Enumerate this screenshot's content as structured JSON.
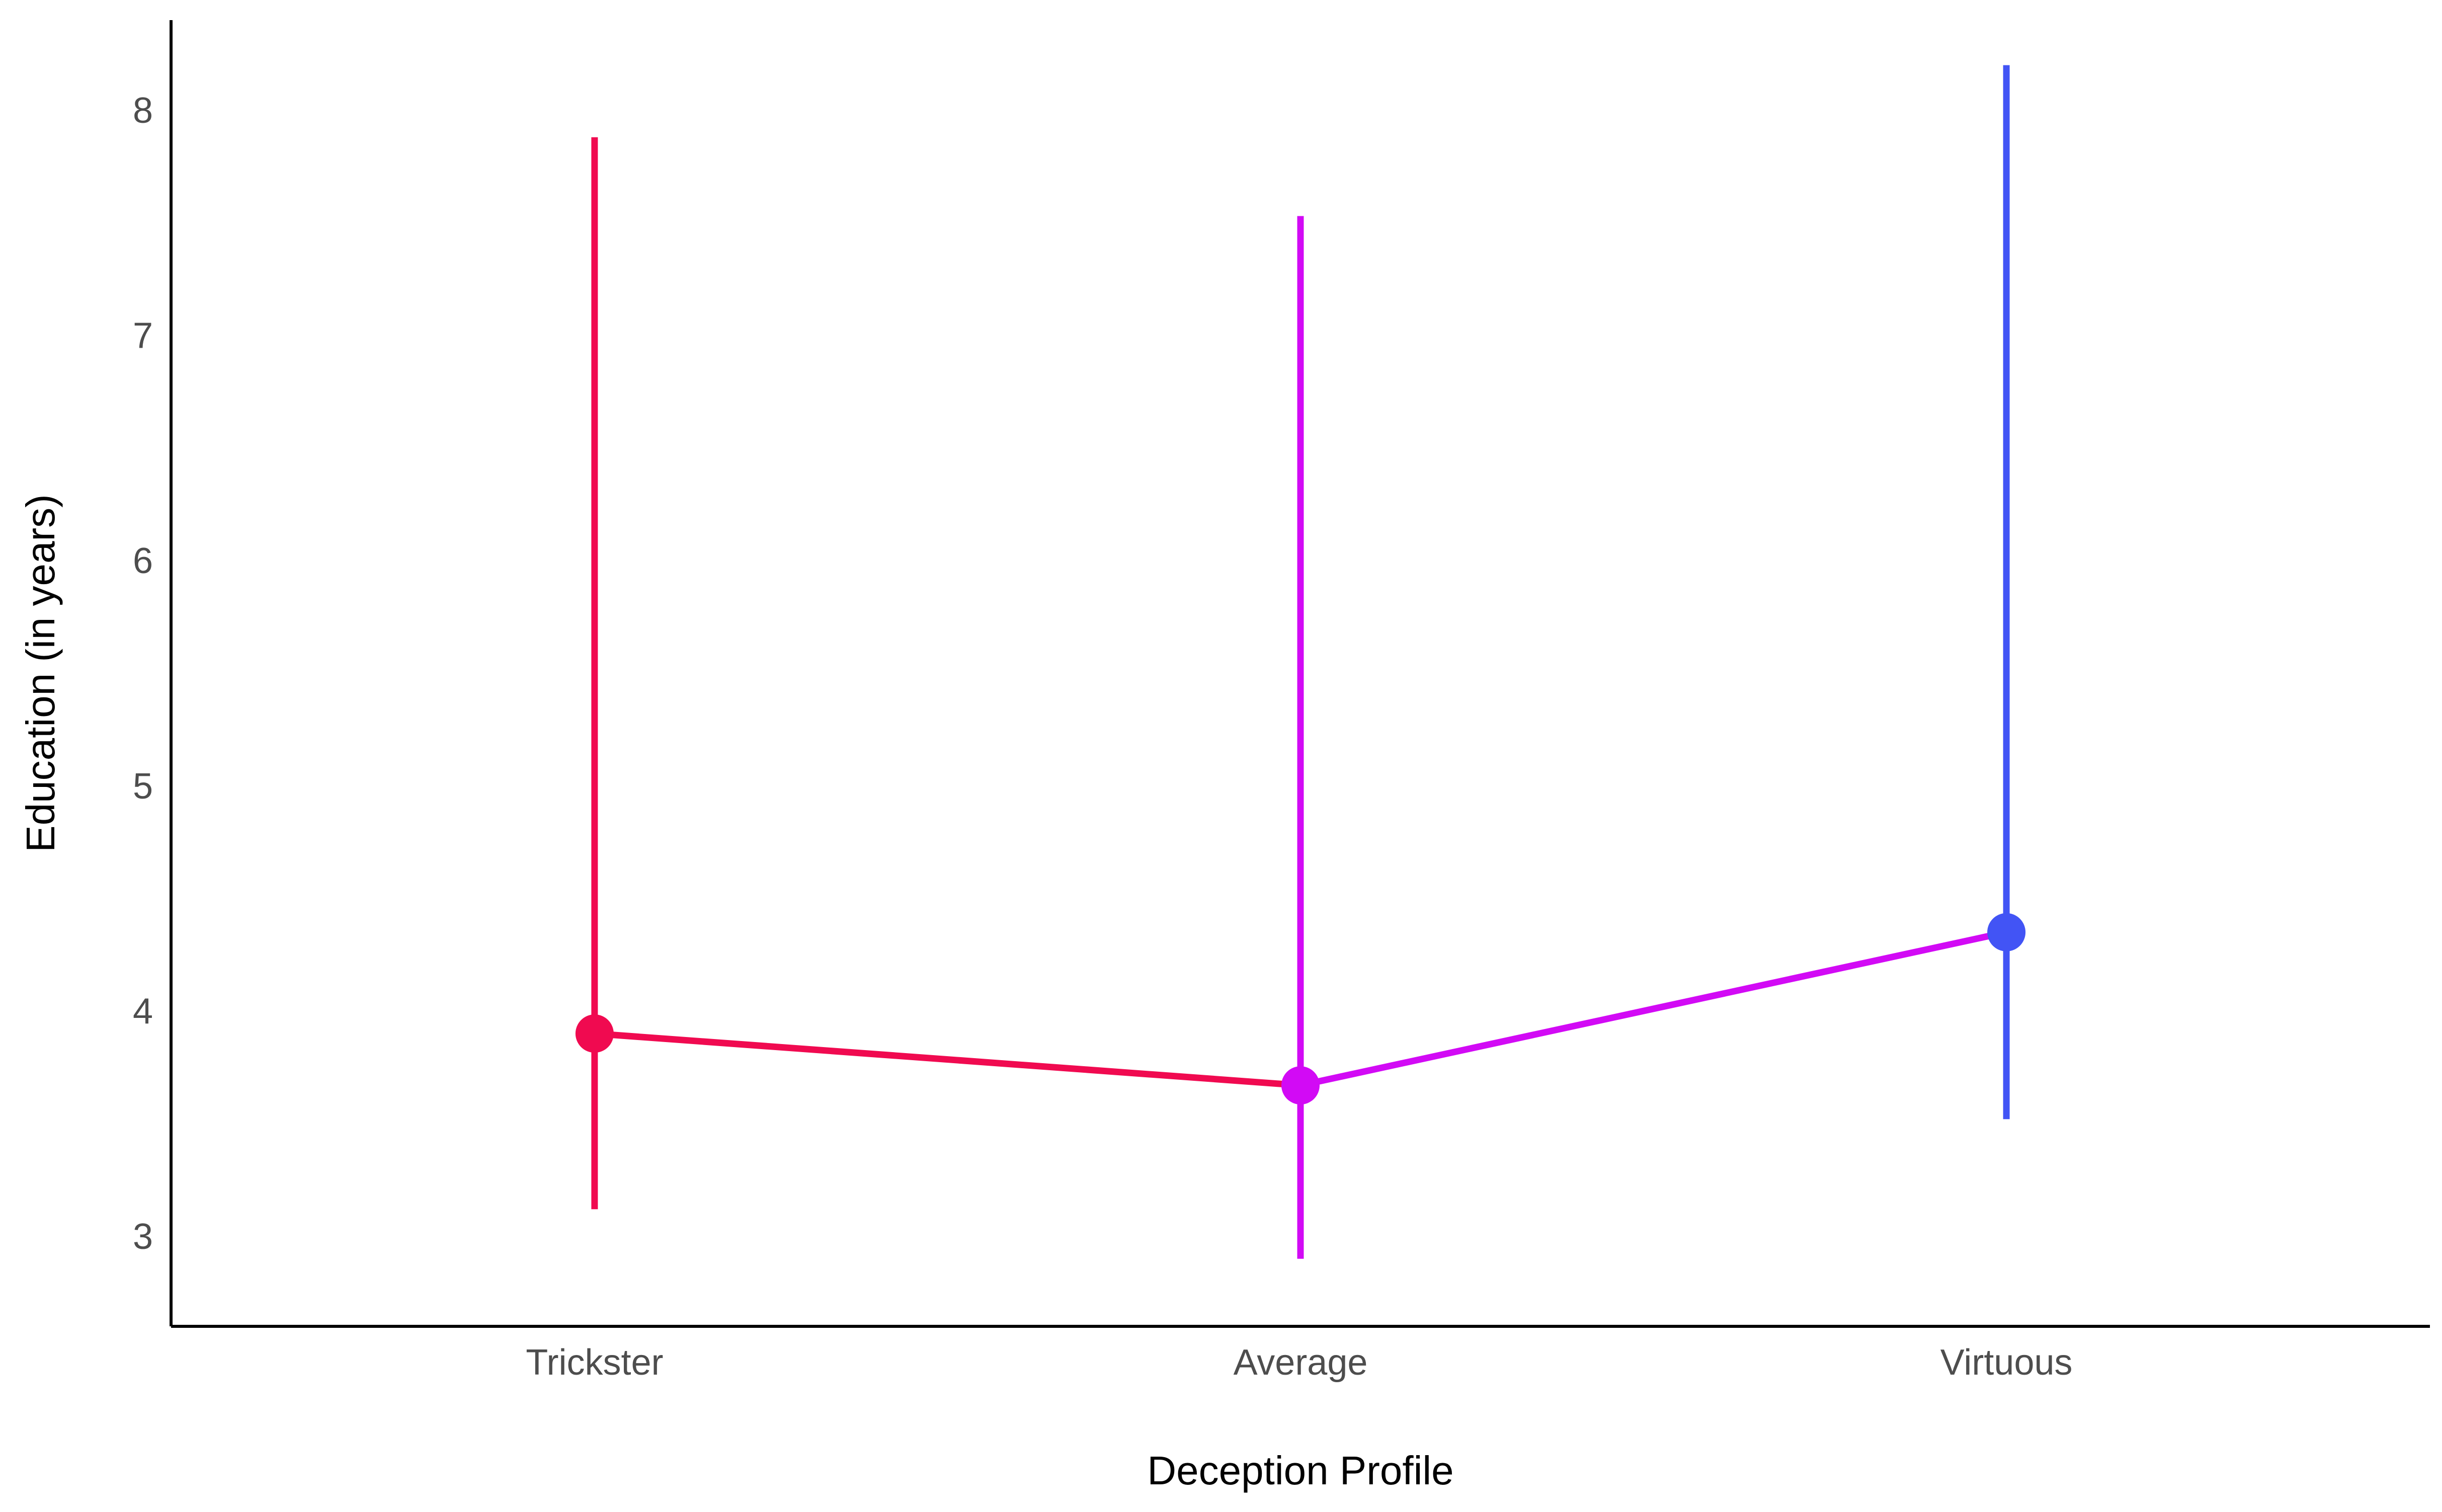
{
  "chart_data": {
    "type": "line",
    "title": "",
    "xlabel": "Deception Profile",
    "ylabel": "Education (in years)",
    "categories": [
      "Trickster",
      "Average",
      "Virtuous"
    ],
    "points": [
      {
        "category": "Trickster",
        "value": 3.9,
        "lower": 3.12,
        "upper": 7.88,
        "color": "#F00A50"
      },
      {
        "category": "Average",
        "value": 3.67,
        "lower": 2.9,
        "upper": 7.53,
        "color": "#D20AF5"
      },
      {
        "category": "Virtuous",
        "value": 4.35,
        "lower": 3.52,
        "upper": 8.2,
        "color": "#4254F5"
      }
    ],
    "segments": [
      {
        "from": "Trickster",
        "to": "Average",
        "color": "#F00A50"
      },
      {
        "from": "Average",
        "to": "Virtuous",
        "color": "#D20AF5"
      }
    ],
    "yticks": [
      3,
      4,
      5,
      6,
      7,
      8
    ],
    "ylim": [
      2.6,
      8.4
    ],
    "grid": false,
    "legend": "none"
  }
}
